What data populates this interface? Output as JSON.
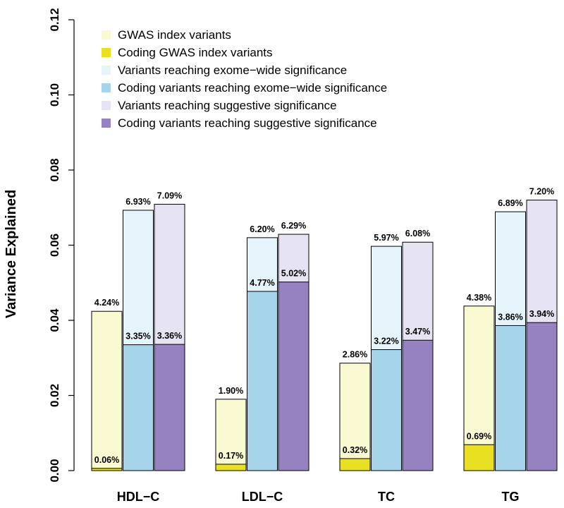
{
  "chart_data": {
    "type": "bar",
    "ylabel": "Variance Explained",
    "xlabel": "",
    "ylim": [
      0,
      0.12
    ],
    "yticks": [
      "0.00",
      "0.02",
      "0.04",
      "0.06",
      "0.08",
      "0.10",
      "0.12"
    ],
    "categories": [
      "HDL−C",
      "LDL−C",
      "TC",
      "TG"
    ],
    "legend_position": "top-left",
    "groups": [
      {
        "name": "GWAS index variants",
        "total": {
          "name": "GWAS index variants",
          "color": "#fafad2",
          "values": [
            0.0424,
            0.019,
            0.0286,
            0.0438
          ],
          "labels": [
            "4.24%",
            "1.90%",
            "2.86%",
            "4.38%"
          ]
        },
        "coding": {
          "name": "Coding GWAS index variants",
          "color": "#e8e020",
          "values": [
            0.0006,
            0.0017,
            0.0032,
            0.0069
          ],
          "labels": [
            "0.06%",
            "0.17%",
            "0.32%",
            "0.69%"
          ]
        }
      },
      {
        "name": "Variants reaching exome-wide significance",
        "total": {
          "name": "Variants reaching exome−wide significance",
          "color": "#e5f4fa",
          "values": [
            0.0693,
            0.062,
            0.0597,
            0.0689
          ],
          "labels": [
            "6.93%",
            "6.20%",
            "5.97%",
            "6.89%"
          ]
        },
        "coding": {
          "name": "Coding variants reaching exome−wide significance",
          "color": "#a6d4ea",
          "values": [
            0.0335,
            0.0477,
            0.0322,
            0.0386
          ],
          "labels": [
            "3.35%",
            "4.77%",
            "3.22%",
            "3.86%"
          ]
        }
      },
      {
        "name": "Variants reaching suggestive significance",
        "total": {
          "name": "Variants reaching suggestive significance",
          "color": "#e6e4f3",
          "values": [
            0.0709,
            0.0629,
            0.0608,
            0.072
          ],
          "labels": [
            "7.09%",
            "6.29%",
            "6.08%",
            "7.20%"
          ]
        },
        "coding": {
          "name": "Coding variants reaching suggestive significance",
          "color": "#9682c0",
          "values": [
            0.0336,
            0.0502,
            0.0347,
            0.0394
          ],
          "labels": [
            "3.36%",
            "5.02%",
            "3.47%",
            "3.94%"
          ]
        }
      }
    ],
    "legend": [
      {
        "label": "GWAS index variants",
        "color": "#fafad2"
      },
      {
        "label": "Coding GWAS index variants",
        "color": "#e8e020"
      },
      {
        "label": "Variants reaching exome−wide significance",
        "color": "#e5f4fa"
      },
      {
        "label": "Coding variants reaching exome−wide significance",
        "color": "#a6d4ea"
      },
      {
        "label": "Variants reaching suggestive significance",
        "color": "#e6e4f3"
      },
      {
        "label": "Coding variants reaching suggestive significance",
        "color": "#9682c0"
      }
    ]
  }
}
